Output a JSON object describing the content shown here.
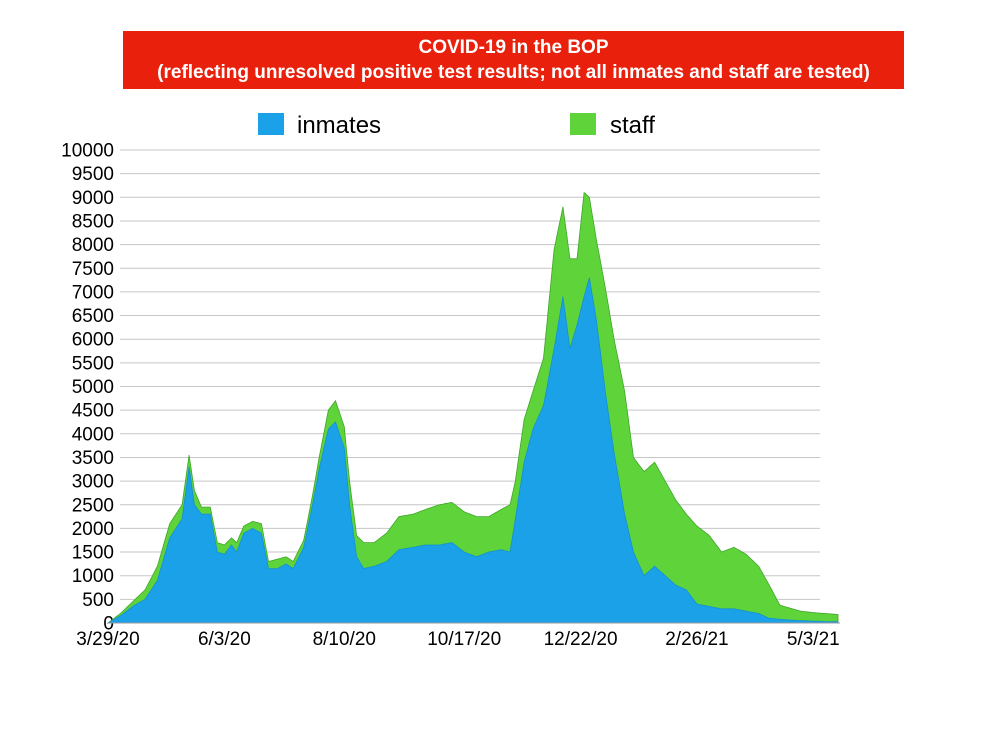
{
  "chart_data": {
    "type": "bar",
    "stacked": true,
    "title": "COVID-19 in the BOP",
    "subtitle": "(reflecting unresolved positive test results; not all inmates and staff are tested)",
    "ylim": [
      0,
      10000
    ],
    "yticks": [
      0,
      500,
      1000,
      1500,
      2000,
      2500,
      3000,
      3500,
      4000,
      4500,
      5000,
      5500,
      6000,
      6500,
      7000,
      7500,
      8000,
      8500,
      9000,
      9500,
      10000
    ],
    "x_tick_labels": [
      "3/29/20",
      "6/3/20",
      "8/10/20",
      "10/17/20",
      "12/22/20",
      "2/26/21",
      "5/3/21"
    ],
    "x_tick_dates": [
      "2020-03-29",
      "2020-06-03",
      "2020-08-10",
      "2020-10-17",
      "2020-12-22",
      "2021-02-26",
      "2021-05-03"
    ],
    "x_range": [
      "2020-03-29",
      "2021-05-17"
    ],
    "grid": true,
    "legend_position": "top",
    "series": [
      {
        "name": "inmates",
        "color": "#1aa1e8",
        "points": [
          [
            "2020-03-29",
            0
          ],
          [
            "2020-04-05",
            150
          ],
          [
            "2020-04-12",
            350
          ],
          [
            "2020-04-19",
            500
          ],
          [
            "2020-04-26",
            900
          ],
          [
            "2020-05-03",
            1800
          ],
          [
            "2020-05-10",
            2200
          ],
          [
            "2020-05-14",
            3300
          ],
          [
            "2020-05-17",
            2500
          ],
          [
            "2020-05-21",
            2300
          ],
          [
            "2020-05-26",
            2300
          ],
          [
            "2020-05-30",
            1500
          ],
          [
            "2020-06-03",
            1450
          ],
          [
            "2020-06-07",
            1650
          ],
          [
            "2020-06-10",
            1500
          ],
          [
            "2020-06-14",
            1900
          ],
          [
            "2020-06-19",
            2000
          ],
          [
            "2020-06-24",
            1900
          ],
          [
            "2020-06-28",
            1150
          ],
          [
            "2020-07-03",
            1150
          ],
          [
            "2020-07-08",
            1250
          ],
          [
            "2020-07-12",
            1150
          ],
          [
            "2020-07-18",
            1600
          ],
          [
            "2020-07-23",
            2500
          ],
          [
            "2020-07-27",
            3300
          ],
          [
            "2020-08-01",
            4100
          ],
          [
            "2020-08-05",
            4250
          ],
          [
            "2020-08-10",
            3700
          ],
          [
            "2020-08-13",
            2500
          ],
          [
            "2020-08-17",
            1400
          ],
          [
            "2020-08-21",
            1150
          ],
          [
            "2020-08-27",
            1200
          ],
          [
            "2020-09-03",
            1300
          ],
          [
            "2020-09-10",
            1550
          ],
          [
            "2020-09-18",
            1600
          ],
          [
            "2020-09-25",
            1650
          ],
          [
            "2020-10-03",
            1650
          ],
          [
            "2020-10-10",
            1700
          ],
          [
            "2020-10-17",
            1500
          ],
          [
            "2020-10-24",
            1400
          ],
          [
            "2020-10-31",
            1500
          ],
          [
            "2020-11-07",
            1550
          ],
          [
            "2020-11-12",
            1500
          ],
          [
            "2020-11-15",
            2200
          ],
          [
            "2020-11-20",
            3400
          ],
          [
            "2020-11-25",
            4100
          ],
          [
            "2020-12-01",
            4600
          ],
          [
            "2020-12-07",
            5800
          ],
          [
            "2020-12-12",
            6900
          ],
          [
            "2020-12-16",
            5800
          ],
          [
            "2020-12-20",
            6300
          ],
          [
            "2020-12-24",
            6900
          ],
          [
            "2020-12-27",
            7300
          ],
          [
            "2020-12-31",
            6400
          ],
          [
            "2021-01-05",
            4900
          ],
          [
            "2021-01-10",
            3600
          ],
          [
            "2021-01-16",
            2300
          ],
          [
            "2021-01-21",
            1500
          ],
          [
            "2021-01-27",
            1000
          ],
          [
            "2021-02-02",
            1200
          ],
          [
            "2021-02-08",
            1000
          ],
          [
            "2021-02-14",
            800
          ],
          [
            "2021-02-20",
            700
          ],
          [
            "2021-02-26",
            400
          ],
          [
            "2021-03-05",
            350
          ],
          [
            "2021-03-12",
            300
          ],
          [
            "2021-03-19",
            300
          ],
          [
            "2021-03-26",
            250
          ],
          [
            "2021-04-02",
            200
          ],
          [
            "2021-04-08",
            100
          ],
          [
            "2021-04-14",
            80
          ],
          [
            "2021-04-20",
            60
          ],
          [
            "2021-04-26",
            50
          ],
          [
            "2021-05-03",
            40
          ],
          [
            "2021-05-10",
            30
          ],
          [
            "2021-05-17",
            30
          ]
        ]
      },
      {
        "name": "staff",
        "color": "#5ed43a",
        "points": [
          [
            "2020-03-29",
            0
          ],
          [
            "2020-04-05",
            50
          ],
          [
            "2020-04-12",
            100
          ],
          [
            "2020-04-19",
            200
          ],
          [
            "2020-04-26",
            300
          ],
          [
            "2020-05-03",
            300
          ],
          [
            "2020-05-10",
            300
          ],
          [
            "2020-05-14",
            250
          ],
          [
            "2020-05-17",
            300
          ],
          [
            "2020-05-21",
            150
          ],
          [
            "2020-05-26",
            150
          ],
          [
            "2020-05-30",
            200
          ],
          [
            "2020-06-03",
            200
          ],
          [
            "2020-06-07",
            150
          ],
          [
            "2020-06-10",
            200
          ],
          [
            "2020-06-14",
            150
          ],
          [
            "2020-06-19",
            150
          ],
          [
            "2020-06-24",
            200
          ],
          [
            "2020-06-28",
            150
          ],
          [
            "2020-07-03",
            200
          ],
          [
            "2020-07-08",
            150
          ],
          [
            "2020-07-12",
            150
          ],
          [
            "2020-07-18",
            150
          ],
          [
            "2020-07-23",
            200
          ],
          [
            "2020-07-27",
            250
          ],
          [
            "2020-08-01",
            400
          ],
          [
            "2020-08-05",
            450
          ],
          [
            "2020-08-10",
            450
          ],
          [
            "2020-08-13",
            500
          ],
          [
            "2020-08-17",
            450
          ],
          [
            "2020-08-21",
            550
          ],
          [
            "2020-08-27",
            500
          ],
          [
            "2020-09-03",
            600
          ],
          [
            "2020-09-10",
            700
          ],
          [
            "2020-09-18",
            700
          ],
          [
            "2020-09-25",
            750
          ],
          [
            "2020-10-03",
            850
          ],
          [
            "2020-10-10",
            850
          ],
          [
            "2020-10-17",
            850
          ],
          [
            "2020-10-24",
            850
          ],
          [
            "2020-10-31",
            750
          ],
          [
            "2020-11-07",
            850
          ],
          [
            "2020-11-12",
            1000
          ],
          [
            "2020-11-15",
            800
          ],
          [
            "2020-11-20",
            900
          ],
          [
            "2020-11-25",
            800
          ],
          [
            "2020-12-01",
            1000
          ],
          [
            "2020-12-07",
            2100
          ],
          [
            "2020-12-12",
            1900
          ],
          [
            "2020-12-16",
            1900
          ],
          [
            "2020-12-20",
            1400
          ],
          [
            "2020-12-24",
            2200
          ],
          [
            "2020-12-27",
            1700
          ],
          [
            "2020-12-31",
            1700
          ],
          [
            "2021-01-05",
            2200
          ],
          [
            "2021-01-10",
            2400
          ],
          [
            "2021-01-16",
            2600
          ],
          [
            "2021-01-21",
            2000
          ],
          [
            "2021-01-27",
            2200
          ],
          [
            "2021-02-02",
            2200
          ],
          [
            "2021-02-08",
            2000
          ],
          [
            "2021-02-14",
            1800
          ],
          [
            "2021-02-20",
            1600
          ],
          [
            "2021-02-26",
            1650
          ],
          [
            "2021-03-05",
            1500
          ],
          [
            "2021-03-12",
            1200
          ],
          [
            "2021-03-19",
            1300
          ],
          [
            "2021-03-26",
            1200
          ],
          [
            "2021-04-02",
            1000
          ],
          [
            "2021-04-08",
            700
          ],
          [
            "2021-04-14",
            300
          ],
          [
            "2021-04-20",
            250
          ],
          [
            "2021-04-26",
            200
          ],
          [
            "2021-05-03",
            180
          ],
          [
            "2021-05-10",
            170
          ],
          [
            "2021-05-17",
            150
          ]
        ]
      }
    ]
  }
}
